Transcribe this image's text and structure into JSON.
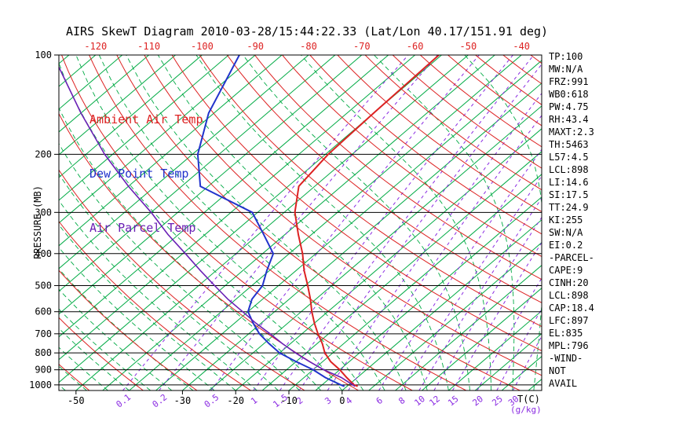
{
  "title": "AIRS SkewT Diagram 2010-03-28/15:44:22.33 (Lat/Lon 40.17/151.91 deg)",
  "legend": {
    "ambient": "Ambient Air Temp",
    "dewpoint": "Dew Point Temp",
    "parcel": "Air Parcel Temp"
  },
  "axes": {
    "pressure_label": "PRESSURE (MB)",
    "temp_label": "T(C)",
    "mixratio_label": "(g/kg)"
  },
  "stats": [
    "TP:100",
    "MW:N/A",
    "FRZ:991",
    "WB0:618",
    "PW:4.75",
    "RH:43.4",
    "MAXT:2.3",
    "TH:5463",
    "L57:4.5",
    "LCL:898",
    "LI:14.6",
    "SI:17.5",
    "TT:24.9",
    "KI:255",
    "SW:N/A",
    "EI:0.2",
    "-PARCEL-",
    "CAPE:9",
    "CINH:20",
    "LCL:898",
    "CAP:18.4",
    "LFC:897",
    "EL:835",
    "MPL:796",
    "-WIND-",
    "NOT",
    "AVAIL"
  ],
  "colors": {
    "background": "#ffffff",
    "isotherm_green": "#00aa44",
    "adiabat_red": "#dd2222",
    "mixratio_purple": "#8a2be2",
    "axis_black": "#000000"
  },
  "chart_data": {
    "type": "line",
    "subtype": "skewt_log_p",
    "title": "AIRS SkewT Diagram 2010-03-28/15:44:22.33 (Lat/Lon 40.17/151.91 deg)",
    "xlabel": "T(C)",
    "ylabel": "PRESSURE (MB)",
    "pressure_axis_scale": "log",
    "pressure_range": [
      100,
      1040
    ],
    "pressure_ticks": [
      100,
      200,
      300,
      400,
      500,
      600,
      700,
      800,
      900,
      1000
    ],
    "top_temp_ticks": [
      -120,
      -110,
      -100,
      -90,
      -80,
      -70,
      -60,
      -50,
      -40
    ],
    "bottom_temp_ticks": [
      -50,
      -30,
      -20,
      -10,
      0
    ],
    "mixing_ratio_lines": [
      0.1,
      0.2,
      0.5,
      1,
      1.5,
      2,
      3,
      4,
      6,
      8,
      10,
      12,
      15,
      20,
      25,
      30
    ],
    "isotherm_step_c": 5,
    "dry_adiabat_theta_range": [
      -50,
      180
    ],
    "dry_adiabat_step_c": 10,
    "moist_adiabat_start_range": [
      -60,
      44
    ],
    "moist_adiabat_step_c": 4,
    "series": [
      {
        "name": "Ambient Air Temp",
        "color": "#dd2222",
        "points": [
          [
            1010,
            2
          ],
          [
            1000,
            1
          ],
          [
            950,
            -2
          ],
          [
            900,
            -5
          ],
          [
            850,
            -8.5
          ],
          [
            800,
            -11.5
          ],
          [
            750,
            -14
          ],
          [
            700,
            -17
          ],
          [
            650,
            -20
          ],
          [
            600,
            -23
          ],
          [
            550,
            -26
          ],
          [
            500,
            -29.5
          ],
          [
            450,
            -33.5
          ],
          [
            400,
            -37.5
          ],
          [
            350,
            -42.5
          ],
          [
            300,
            -48
          ],
          [
            250,
            -53
          ],
          [
            200,
            -54.5
          ],
          [
            150,
            -55
          ],
          [
            100,
            -55.5
          ]
        ]
      },
      {
        "name": "Dew Point Temp",
        "color": "#2233cc",
        "points": [
          [
            1010,
            -0.5
          ],
          [
            1000,
            -1.5
          ],
          [
            950,
            -6
          ],
          [
            900,
            -10
          ],
          [
            850,
            -15
          ],
          [
            800,
            -20
          ],
          [
            750,
            -24
          ],
          [
            700,
            -28
          ],
          [
            650,
            -31.5
          ],
          [
            600,
            -35
          ],
          [
            550,
            -37
          ],
          [
            500,
            -38
          ],
          [
            450,
            -40.5
          ],
          [
            400,
            -43
          ],
          [
            350,
            -49
          ],
          [
            300,
            -56
          ],
          [
            250,
            -71.5
          ],
          [
            200,
            -79
          ],
          [
            150,
            -86
          ],
          [
            100,
            -93
          ]
        ]
      },
      {
        "name": "Air Parcel Temp",
        "color": "#6a1fb5",
        "points": [
          [
            1010,
            1.5
          ],
          [
            950,
            -3
          ],
          [
            900,
            -8
          ],
          [
            850,
            -12.5
          ],
          [
            800,
            -17
          ],
          [
            750,
            -21.5
          ],
          [
            700,
            -26
          ],
          [
            650,
            -31
          ],
          [
            600,
            -36
          ],
          [
            550,
            -41.5
          ],
          [
            500,
            -47
          ],
          [
            450,
            -53
          ],
          [
            400,
            -59.5
          ],
          [
            350,
            -67
          ],
          [
            300,
            -75
          ],
          [
            250,
            -85
          ],
          [
            200,
            -96.5
          ],
          [
            150,
            -110
          ],
          [
            100,
            -128
          ]
        ]
      }
    ]
  }
}
